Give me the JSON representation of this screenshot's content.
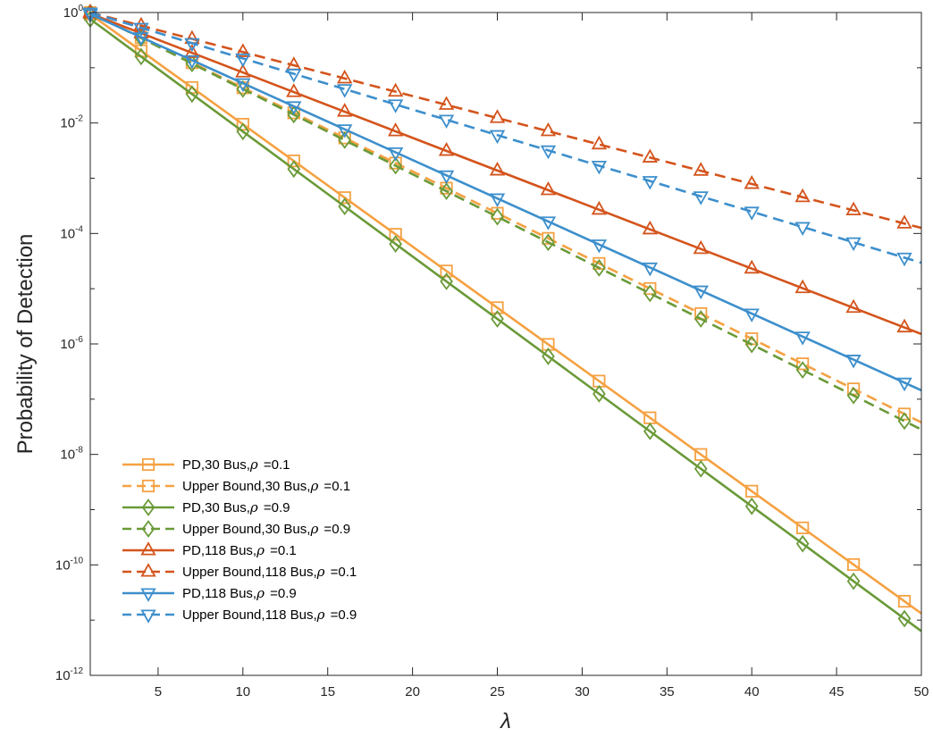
{
  "chart_data": {
    "type": "line",
    "title": "",
    "xlabel": "λ",
    "ylabel": "Probability of Detection",
    "xlim": [
      1,
      50
    ],
    "ylim_log10": [
      -12,
      0
    ],
    "yscale": "log",
    "grid": false,
    "legend_position": "bottom-left",
    "x_ticks": [
      "5",
      "10",
      "15",
      "20",
      "25",
      "30",
      "35",
      "40",
      "45",
      "50"
    ],
    "y_ticks": [
      {
        "base": "10",
        "exp": "0"
      },
      {
        "base": "10",
        "exp": "-2"
      },
      {
        "base": "10",
        "exp": "-4"
      },
      {
        "base": "10",
        "exp": "-6"
      },
      {
        "base": "10",
        "exp": "-8"
      },
      {
        "base": "10",
        "exp": "-10"
      },
      {
        "base": "10",
        "exp": "-12"
      }
    ],
    "marker_x": [
      1,
      4,
      7,
      10,
      13,
      16,
      19,
      22,
      25,
      28,
      31,
      34,
      37,
      40,
      43,
      46,
      49
    ],
    "series": [
      {
        "name": "PD,30 Bus,",
        "rho": "=0.1",
        "color": "#f5a142",
        "line": "solid",
        "marker": "square",
        "log10_start": -0.03,
        "log10_end": -10.88
      },
      {
        "name": "Upper Bound,30 Bus,",
        "rho": "=0.1",
        "color": "#f5a142",
        "line": "dashed",
        "marker": "square",
        "log10_start": 0.0,
        "log10_end": -7.42
      },
      {
        "name": "PD,30 Bus,",
        "rho": "=0.9",
        "color": "#6a9a38",
        "line": "solid",
        "marker": "diamond",
        "log10_start": -0.12,
        "log10_end": -11.2
      },
      {
        "name": "Upper Bound,30 Bus,",
        "rho": "=0.9",
        "color": "#6a9a38",
        "line": "dashed",
        "marker": "diamond",
        "log10_start": 0.0,
        "log10_end": -7.55
      },
      {
        "name": "PD,118 Bus,",
        "rho": "=0.1",
        "color": "#d4541c",
        "line": "solid",
        "marker": "triangle-up",
        "log10_start": -0.02,
        "log10_end": -5.82
      },
      {
        "name": "Upper Bound,118 Bus,",
        "rho": "=0.1",
        "color": "#d4541c",
        "line": "dashed",
        "marker": "triangle-up",
        "log10_start": 0.0,
        "log10_end": -3.9
      },
      {
        "name": "PD,118 Bus,",
        "rho": "=0.9",
        "color": "#3d8fcc",
        "line": "solid",
        "marker": "triangle-down",
        "log10_start": -0.03,
        "log10_end": -6.84
      },
      {
        "name": "Upper Bound,118 Bus,",
        "rho": "=0.9",
        "color": "#3d8fcc",
        "line": "dashed",
        "marker": "triangle-down",
        "log10_start": 0.0,
        "log10_end": -4.53
      }
    ],
    "legend_rho_symbol": "ρ"
  }
}
